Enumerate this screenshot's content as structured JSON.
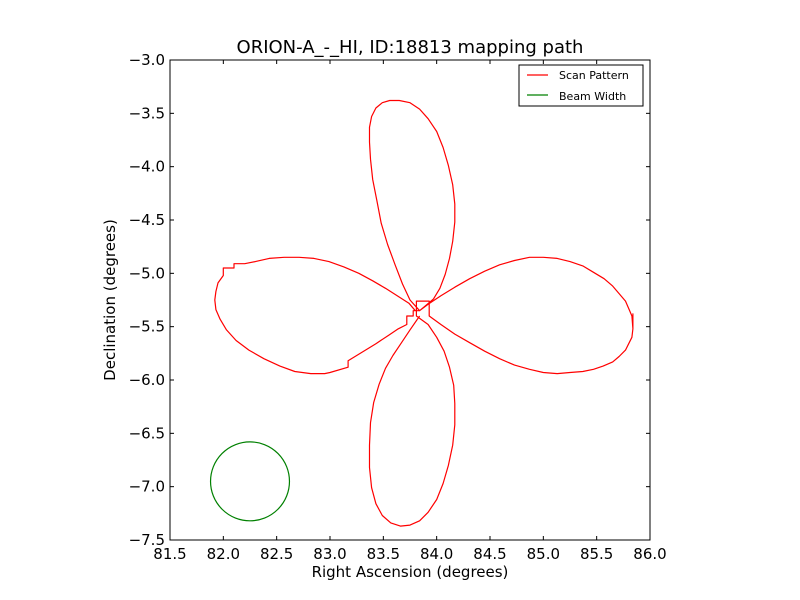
{
  "chart_data": {
    "type": "line",
    "title": "ORION-A_-_HI, ID:18813 mapping path",
    "xlabel": "Right Ascension (degrees)",
    "ylabel": "Declination (degrees)",
    "xlim": [
      81.5,
      86.0
    ],
    "ylim": [
      -7.5,
      -3.0
    ],
    "xticks": [
      81.5,
      82.0,
      82.5,
      83.0,
      83.5,
      84.0,
      84.5,
      85.0,
      85.5,
      86.0
    ],
    "yticks": [
      -3.0,
      -3.5,
      -4.0,
      -4.5,
      -5.0,
      -5.5,
      -6.0,
      -6.5,
      -7.0,
      -7.5
    ],
    "xtick_labels": [
      "81.5",
      "82.0",
      "82.5",
      "83.0",
      "83.5",
      "84.0",
      "84.5",
      "85.0",
      "85.5",
      "86.0"
    ],
    "ytick_labels": [
      "−3.0",
      "−3.5",
      "−4.0",
      "−4.5",
      "−5.0",
      "−5.5",
      "−6.0",
      "−6.5",
      "−7.0",
      "−7.5"
    ],
    "legend_position": "top-right",
    "grid": false,
    "series": [
      {
        "name": "Scan Pattern",
        "color": "#ff0000",
        "x": [
          83.8,
          83.74,
          83.63,
          83.52,
          83.4,
          83.27,
          83.13,
          82.99,
          82.85,
          82.71,
          82.57,
          82.43,
          82.3,
          82.2,
          82.1,
          82.1,
          82.0,
          82.0,
          81.95,
          81.93,
          81.92,
          81.93,
          81.97,
          82.03,
          82.12,
          82.24,
          82.38,
          82.53,
          82.67,
          82.82,
          82.95,
          83.0,
          83.17,
          83.17,
          83.3,
          83.43,
          83.55,
          83.64,
          83.72,
          83.72,
          83.78,
          83.78,
          83.84,
          83.75,
          83.68,
          83.61,
          83.54,
          83.48,
          83.44,
          83.4,
          83.38,
          83.37,
          83.37,
          83.39,
          83.43,
          83.49,
          83.56,
          83.65,
          83.75,
          83.84,
          83.92,
          84.0,
          84.06,
          84.11,
          84.15,
          84.17,
          84.17,
          84.15,
          84.12,
          84.08,
          84.03,
          83.97,
          83.9,
          83.84,
          83.92,
          84.04,
          84.17,
          84.31,
          84.45,
          84.59,
          84.73,
          84.87,
          85.0,
          85.13,
          85.25,
          85.37,
          85.47,
          85.57,
          85.65,
          85.71,
          85.77,
          85.8,
          85.83,
          85.84,
          85.84,
          85.84,
          85.84,
          85.83,
          85.8,
          85.77,
          85.71,
          85.65,
          85.56,
          85.47,
          85.37,
          85.25,
          85.13,
          85.0,
          84.87,
          84.73,
          84.59,
          84.45,
          84.31,
          84.17,
          84.04,
          83.93,
          83.93,
          83.81,
          83.81,
          83.92,
          84.0,
          84.07,
          84.12,
          84.16,
          84.17,
          84.17,
          84.15,
          84.11,
          84.06,
          84.0,
          83.92,
          83.84,
          83.75,
          83.66,
          83.57,
          83.49,
          83.43,
          83.39,
          83.37,
          83.37,
          83.38,
          83.41,
          83.46,
          83.52,
          83.59,
          83.67,
          83.75,
          83.84
        ],
        "y": [
          -5.35,
          -5.28,
          -5.21,
          -5.14,
          -5.07,
          -5.0,
          -4.94,
          -4.89,
          -4.86,
          -4.85,
          -4.85,
          -4.86,
          -4.89,
          -4.91,
          -4.91,
          -4.95,
          -4.95,
          -5.02,
          -5.09,
          -5.17,
          -5.25,
          -5.34,
          -5.43,
          -5.53,
          -5.63,
          -5.72,
          -5.8,
          -5.87,
          -5.92,
          -5.94,
          -5.94,
          -5.93,
          -5.88,
          -5.82,
          -5.74,
          -5.66,
          -5.58,
          -5.52,
          -5.48,
          -5.4,
          -5.4,
          -5.35,
          -5.35,
          -5.25,
          -5.1,
          -4.92,
          -4.73,
          -4.53,
          -4.32,
          -4.12,
          -3.93,
          -3.77,
          -3.63,
          -3.53,
          -3.45,
          -3.4,
          -3.38,
          -3.38,
          -3.4,
          -3.46,
          -3.55,
          -3.67,
          -3.82,
          -3.99,
          -4.17,
          -4.35,
          -4.52,
          -4.7,
          -4.86,
          -5.01,
          -5.14,
          -5.24,
          -5.3,
          -5.35,
          -5.29,
          -5.21,
          -5.13,
          -5.05,
          -4.98,
          -4.92,
          -4.88,
          -4.85,
          -4.85,
          -4.86,
          -4.89,
          -4.93,
          -4.99,
          -5.05,
          -5.12,
          -5.19,
          -5.26,
          -5.33,
          -5.4,
          -5.52,
          -5.38,
          -5.4,
          -5.52,
          -5.6,
          -5.66,
          -5.72,
          -5.78,
          -5.83,
          -5.87,
          -5.9,
          -5.92,
          -5.93,
          -5.94,
          -5.93,
          -5.9,
          -5.86,
          -5.8,
          -5.73,
          -5.65,
          -5.57,
          -5.48,
          -5.4,
          -5.26,
          -5.26,
          -5.4,
          -5.48,
          -5.6,
          -5.73,
          -5.88,
          -6.05,
          -6.22,
          -6.42,
          -6.61,
          -6.8,
          -6.97,
          -7.12,
          -7.24,
          -7.32,
          -7.36,
          -7.37,
          -7.34,
          -7.27,
          -7.16,
          -7.01,
          -6.82,
          -6.61,
          -6.4,
          -6.21,
          -6.04,
          -5.89,
          -5.77,
          -5.65,
          -5.53,
          -5.4
        ]
      },
      {
        "name": "Beam Width",
        "color": "#008000",
        "center": [
          82.25,
          -6.95
        ],
        "radius": 0.37
      }
    ]
  }
}
